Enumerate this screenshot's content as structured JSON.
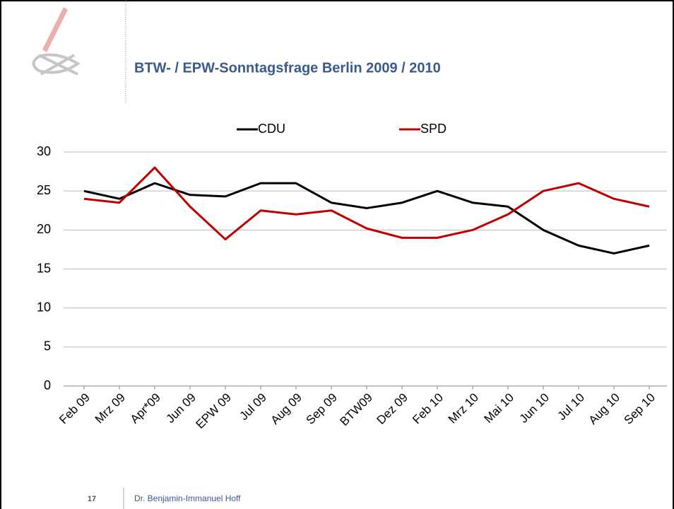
{
  "chart_data": {
    "type": "line",
    "title": "BTW- / EPW-Sonntagsfrage Berlin 2009 / 2010",
    "categories": [
      "Feb 09",
      "Mrz 09",
      "Apr*09",
      "Jun 09",
      "EPW 09",
      "Jul 09",
      "Aug 09",
      "Sep 09",
      "BTW09",
      "Dez 09",
      "Feb 10",
      "Mrz 10",
      "Mai 10",
      "Jun 10",
      "Jul 10",
      "Aug 10",
      "Sep 10"
    ],
    "series": [
      {
        "name": "CDU",
        "color": "#000000",
        "values": [
          25,
          24,
          26,
          24.5,
          24.3,
          26,
          26,
          23.5,
          22.8,
          23.5,
          25,
          23.5,
          23,
          20,
          18,
          17,
          18
        ]
      },
      {
        "name": "SPD",
        "color": "#c00000",
        "values": [
          24,
          23.5,
          28,
          23,
          18.8,
          22.5,
          22,
          22.5,
          20.2,
          19,
          19,
          20,
          22,
          25,
          26,
          24,
          23
        ]
      }
    ],
    "ylim": [
      0,
      30
    ],
    "yticks": [
      0,
      5,
      10,
      15,
      20,
      25,
      30
    ],
    "grid": true,
    "legend": "top"
  },
  "footer": {
    "page_number": "17",
    "author": "Dr. Benjamin-Immanuel Hoff"
  }
}
